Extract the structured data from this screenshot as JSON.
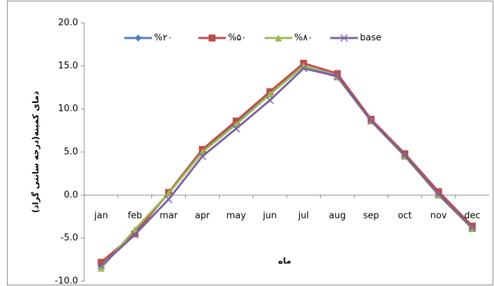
{
  "chart_data": {
    "type": "line",
    "ylabel": "دمای کمینه(درجه سانتی گراد)",
    "xlabel": "ماه",
    "categories": [
      "jan",
      "feb",
      "mar",
      "apr",
      "may",
      "jun",
      "jul",
      "aug",
      "sep",
      "oct",
      "nov",
      "dec"
    ],
    "series": [
      {
        "name": "%۲۰",
        "color": "#4a7ebb",
        "marker": "diamond",
        "values": [
          -8.3,
          -4.3,
          0.2,
          5.1,
          8.3,
          11.8,
          15.0,
          13.8,
          8.7,
          4.6,
          0.1,
          -3.9
        ]
      },
      {
        "name": "%۵۰",
        "color": "#be4b48",
        "marker": "square",
        "values": [
          -7.8,
          -4.5,
          0.3,
          5.3,
          8.6,
          12.0,
          15.3,
          14.1,
          8.8,
          4.8,
          0.4,
          -3.6
        ]
      },
      {
        "name": "%۸۰",
        "color": "#98b954",
        "marker": "triangle",
        "values": [
          -8.5,
          -4.0,
          0.2,
          5.0,
          8.2,
          11.7,
          15.0,
          13.7,
          8.6,
          4.5,
          0.0,
          -3.9
        ]
      },
      {
        "name": "base",
        "color": "#7d60a0",
        "marker": "x",
        "values": [
          -8.2,
          -4.6,
          -0.5,
          4.5,
          7.7,
          11.0,
          14.7,
          13.8,
          8.6,
          4.6,
          0.1,
          -3.8
        ]
      }
    ],
    "ylim": [
      -10,
      20
    ],
    "yticks": [
      {
        "value": -10,
        "label": "-10.0"
      },
      {
        "value": -5,
        "label": "-5.0"
      },
      {
        "value": 0,
        "label": "0.0"
      },
      {
        "value": 5,
        "label": "5.0"
      },
      {
        "value": 10,
        "label": "10.0"
      },
      {
        "value": 15,
        "label": "15.0"
      },
      {
        "value": 20,
        "label": "20.0"
      }
    ],
    "grid": false,
    "legend": "top"
  }
}
